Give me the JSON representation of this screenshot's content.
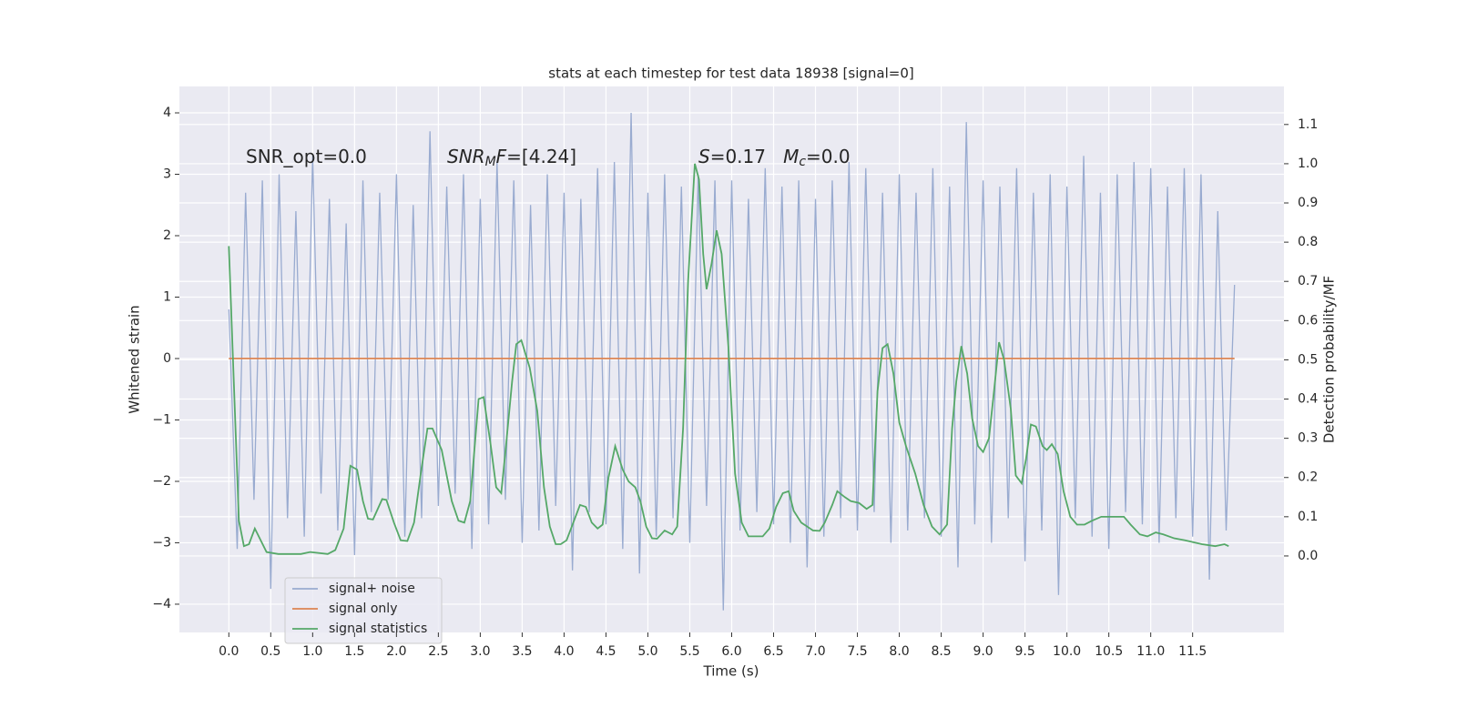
{
  "chart_data": {
    "type": "line",
    "title": "stats at each timestep for test data 18938 [signal=0]",
    "xlabel": "Time (s)",
    "ylabel": "Whitened strain",
    "y2label": "Detection probability/MF",
    "annotations": [
      [
        "SNR_opt=0.0"
      ],
      [
        "SNR",
        "M",
        "F",
        "=[4.24]"
      ],
      [
        "S",
        "=0.17   ",
        "M",
        "c",
        "=0.0"
      ]
    ],
    "xlim": [
      -0.59,
      12.59
    ],
    "ylim": [
      -4.46,
      4.43
    ],
    "y2lim": [
      -0.195,
      1.197
    ],
    "xticks": [
      {
        "value": 0,
        "label": "0.0"
      },
      {
        "value": 0.5,
        "label": "0.5"
      },
      {
        "value": 1,
        "label": "1.0"
      },
      {
        "value": 1.5,
        "label": "1.5"
      },
      {
        "value": 2,
        "label": "2.0"
      },
      {
        "value": 2.5,
        "label": "2.5"
      },
      {
        "value": 3,
        "label": "3.0"
      },
      {
        "value": 3.5,
        "label": "3.5"
      },
      {
        "value": 4,
        "label": "4.0"
      },
      {
        "value": 4.5,
        "label": "4.5"
      },
      {
        "value": 5,
        "label": "5.0"
      },
      {
        "value": 5.5,
        "label": "5.5"
      },
      {
        "value": 6,
        "label": "6.0"
      },
      {
        "value": 6.5,
        "label": "6.5"
      },
      {
        "value": 7,
        "label": "7.0"
      },
      {
        "value": 7.5,
        "label": "7.5"
      },
      {
        "value": 8,
        "label": "8.0"
      },
      {
        "value": 8.5,
        "label": "8.5"
      },
      {
        "value": 9,
        "label": "9.0"
      },
      {
        "value": 9.5,
        "label": "9.5"
      },
      {
        "value": 10,
        "label": "10.0"
      },
      {
        "value": 10.5,
        "label": "10.5"
      },
      {
        "value": 11,
        "label": "11.0"
      },
      {
        "value": 11.5,
        "label": "11.5"
      }
    ],
    "yticks": [
      {
        "value": -4,
        "label": "−4"
      },
      {
        "value": -3,
        "label": "−3"
      },
      {
        "value": -2,
        "label": "−2"
      },
      {
        "value": -1,
        "label": "−1"
      },
      0,
      1,
      2,
      3,
      4
    ],
    "y2ticks": [
      {
        "value": 0,
        "label": "0.0"
      },
      {
        "value": 0.1,
        "label": "0.1"
      },
      {
        "value": 0.2,
        "label": "0.2"
      },
      {
        "value": 0.3,
        "label": "0.3"
      },
      {
        "value": 0.4,
        "label": "0.4"
      },
      {
        "value": 0.5,
        "label": "0.5"
      },
      {
        "value": 0.6,
        "label": "0.6"
      },
      {
        "value": 0.7,
        "label": "0.7"
      },
      {
        "value": 0.8,
        "label": "0.8"
      },
      {
        "value": 0.9,
        "label": "0.9"
      },
      {
        "value": 1,
        "label": "1.0"
      },
      {
        "value": 1.1,
        "label": "1.1"
      }
    ],
    "grid": true,
    "legend": "lower left",
    "series": [
      {
        "name": "signal+ noise",
        "color": "#99abd0",
        "x": [
          0,
          0.1,
          0.2,
          0.3,
          0.4,
          0.5,
          0.6,
          0.7,
          0.8,
          0.9,
          1,
          1.1,
          1.2,
          1.3,
          1.4,
          1.5,
          1.6,
          1.7,
          1.8,
          1.9,
          2,
          2.1,
          2.2,
          2.3,
          2.4,
          2.5,
          2.6,
          2.7,
          2.8,
          2.9,
          3,
          3.1,
          3.2,
          3.3,
          3.4,
          3.5,
          3.6,
          3.7,
          3.8,
          3.9,
          4,
          4.1,
          4.2,
          4.3,
          4.4,
          4.5,
          4.6,
          4.7,
          4.8,
          4.9,
          5,
          5.1,
          5.2,
          5.3,
          5.4,
          5.5,
          5.6,
          5.7,
          5.8,
          5.9,
          6,
          6.1,
          6.2,
          6.3,
          6.4,
          6.5,
          6.6,
          6.7,
          6.8,
          6.9,
          7,
          7.1,
          7.2,
          7.3,
          7.4,
          7.5,
          7.6,
          7.7,
          7.8,
          7.9,
          8,
          8.1,
          8.2,
          8.3,
          8.4,
          8.5,
          8.6,
          8.7,
          8.8,
          8.9,
          9,
          9.1,
          9.2,
          9.3,
          9.4,
          9.5,
          9.6,
          9.7,
          9.8,
          9.9,
          10,
          10.1,
          10.2,
          10.3,
          10.4,
          10.5,
          10.6,
          10.7,
          10.8,
          10.9,
          11,
          11.1,
          11.2,
          11.3,
          11.4,
          11.5,
          11.6,
          11.7,
          11.8,
          11.9,
          12
        ],
        "values": [
          0.8,
          -3.1,
          2.7,
          -2.3,
          2.9,
          -3.75,
          3.0,
          -2.6,
          2.4,
          -2.9,
          3.3,
          -2.2,
          2.6,
          -2.8,
          2.2,
          -3.2,
          2.9,
          -2.5,
          2.7,
          -2.3,
          3.0,
          -2.9,
          2.5,
          -2.6,
          3.7,
          -2.4,
          2.8,
          -2.2,
          3.0,
          -3.1,
          2.6,
          -2.7,
          3.2,
          -2.3,
          2.9,
          -3.0,
          2.5,
          -2.8,
          3.0,
          -2.4,
          2.7,
          -3.45,
          2.6,
          -2.5,
          3.1,
          -2.7,
          3.2,
          -3.1,
          4.0,
          -3.5,
          2.7,
          -2.9,
          3.0,
          -2.6,
          2.8,
          -3.0,
          3.0,
          -2.4,
          2.9,
          -4.1,
          2.9,
          -2.8,
          2.6,
          -2.5,
          3.1,
          -2.7,
          2.8,
          -3.0,
          2.9,
          -3.4,
          2.6,
          -2.9,
          2.9,
          -2.6,
          3.2,
          -2.8,
          3.1,
          -2.5,
          2.7,
          -3.0,
          3.0,
          -2.8,
          2.7,
          -2.6,
          3.1,
          -2.9,
          2.8,
          -3.4,
          3.85,
          -2.7,
          2.9,
          -3.0,
          2.8,
          -2.6,
          3.1,
          -3.3,
          2.7,
          -2.8,
          3.0,
          -3.85,
          2.8,
          -2.6,
          3.3,
          -2.9,
          2.7,
          -3.1,
          3.0,
          -2.5,
          3.2,
          -2.7,
          3.1,
          -3.0,
          2.8,
          -2.6,
          3.1,
          -2.9,
          3.0,
          -3.6,
          2.4,
          -2.8,
          1.2
        ]
      },
      {
        "name": "signal only",
        "color": "#dd8452",
        "x": [
          0,
          12
        ],
        "values": [
          0,
          0
        ]
      },
      {
        "name": "signal statistics",
        "color": "#55a868",
        "axis": "y2",
        "x": [
          0,
          0.12,
          0.18,
          0.24,
          0.31,
          0.45,
          0.59,
          0.86,
          0.97,
          1.18,
          1.27,
          1.37,
          1.45,
          1.53,
          1.6,
          1.66,
          1.72,
          1.83,
          1.88,
          1.97,
          2.05,
          2.13,
          2.21,
          2.29,
          2.37,
          2.43,
          2.54,
          2.66,
          2.74,
          2.81,
          2.88,
          2.98,
          3.04,
          3.12,
          3.19,
          3.25,
          3.3,
          3.38,
          3.43,
          3.49,
          3.59,
          3.68,
          3.76,
          3.83,
          3.9,
          3.96,
          4.03,
          4.11,
          4.19,
          4.26,
          4.33,
          4.4,
          4.46,
          4.53,
          4.61,
          4.7,
          4.77,
          4.85,
          4.91,
          4.98,
          5.05,
          5.11,
          5.2,
          5.29,
          5.35,
          5.42,
          5.48,
          5.56,
          5.61,
          5.66,
          5.7,
          5.76,
          5.82,
          5.88,
          5.96,
          6.04,
          6.12,
          6.2,
          6.37,
          6.45,
          6.53,
          6.61,
          6.68,
          6.74,
          6.83,
          6.97,
          7.05,
          7.11,
          7.2,
          7.26,
          7.35,
          7.42,
          7.52,
          7.61,
          7.68,
          7.74,
          7.8,
          7.86,
          7.93,
          8.0,
          8.08,
          8.19,
          8.29,
          8.39,
          8.48,
          8.57,
          8.63,
          8.68,
          8.74,
          8.81,
          8.87,
          8.94,
          9.0,
          9.07,
          9.13,
          9.19,
          9.25,
          9.33,
          9.39,
          9.46,
          9.51,
          9.57,
          9.63,
          9.71,
          9.76,
          9.82,
          9.89,
          9.96,
          10.04,
          10.12,
          10.21,
          10.3,
          10.41,
          10.54,
          10.68,
          10.76,
          10.87,
          10.96,
          11.06,
          11.15,
          11.28,
          11.41,
          11.61,
          11.77,
          11.88,
          11.93
        ],
        "values": [
          0.79,
          0.09,
          0.025,
          0.03,
          0.07,
          0.01,
          0.005,
          0.005,
          0.01,
          0.005,
          0.015,
          0.07,
          0.23,
          0.22,
          0.14,
          0.095,
          0.093,
          0.145,
          0.143,
          0.085,
          0.04,
          0.038,
          0.085,
          0.21,
          0.325,
          0.325,
          0.27,
          0.14,
          0.09,
          0.085,
          0.14,
          0.4,
          0.405,
          0.29,
          0.175,
          0.16,
          0.265,
          0.445,
          0.54,
          0.55,
          0.48,
          0.37,
          0.175,
          0.075,
          0.03,
          0.03,
          0.04,
          0.085,
          0.13,
          0.125,
          0.085,
          0.07,
          0.08,
          0.2,
          0.28,
          0.22,
          0.19,
          0.175,
          0.14,
          0.075,
          0.045,
          0.044,
          0.065,
          0.055,
          0.075,
          0.325,
          0.7,
          1.0,
          0.96,
          0.77,
          0.68,
          0.745,
          0.83,
          0.77,
          0.535,
          0.21,
          0.085,
          0.05,
          0.05,
          0.07,
          0.125,
          0.16,
          0.165,
          0.115,
          0.085,
          0.065,
          0.064,
          0.085,
          0.13,
          0.165,
          0.15,
          0.14,
          0.135,
          0.12,
          0.13,
          0.42,
          0.53,
          0.54,
          0.465,
          0.34,
          0.28,
          0.21,
          0.13,
          0.075,
          0.055,
          0.08,
          0.325,
          0.445,
          0.535,
          0.465,
          0.35,
          0.28,
          0.265,
          0.3,
          0.42,
          0.545,
          0.5,
          0.375,
          0.205,
          0.185,
          0.245,
          0.335,
          0.33,
          0.28,
          0.27,
          0.285,
          0.26,
          0.165,
          0.1,
          0.08,
          0.08,
          0.09,
          0.1,
          0.1,
          0.1,
          0.08,
          0.055,
          0.05,
          0.06,
          0.055,
          0.045,
          0.04,
          0.03,
          0.025,
          0.03,
          0.025
        ]
      }
    ]
  }
}
